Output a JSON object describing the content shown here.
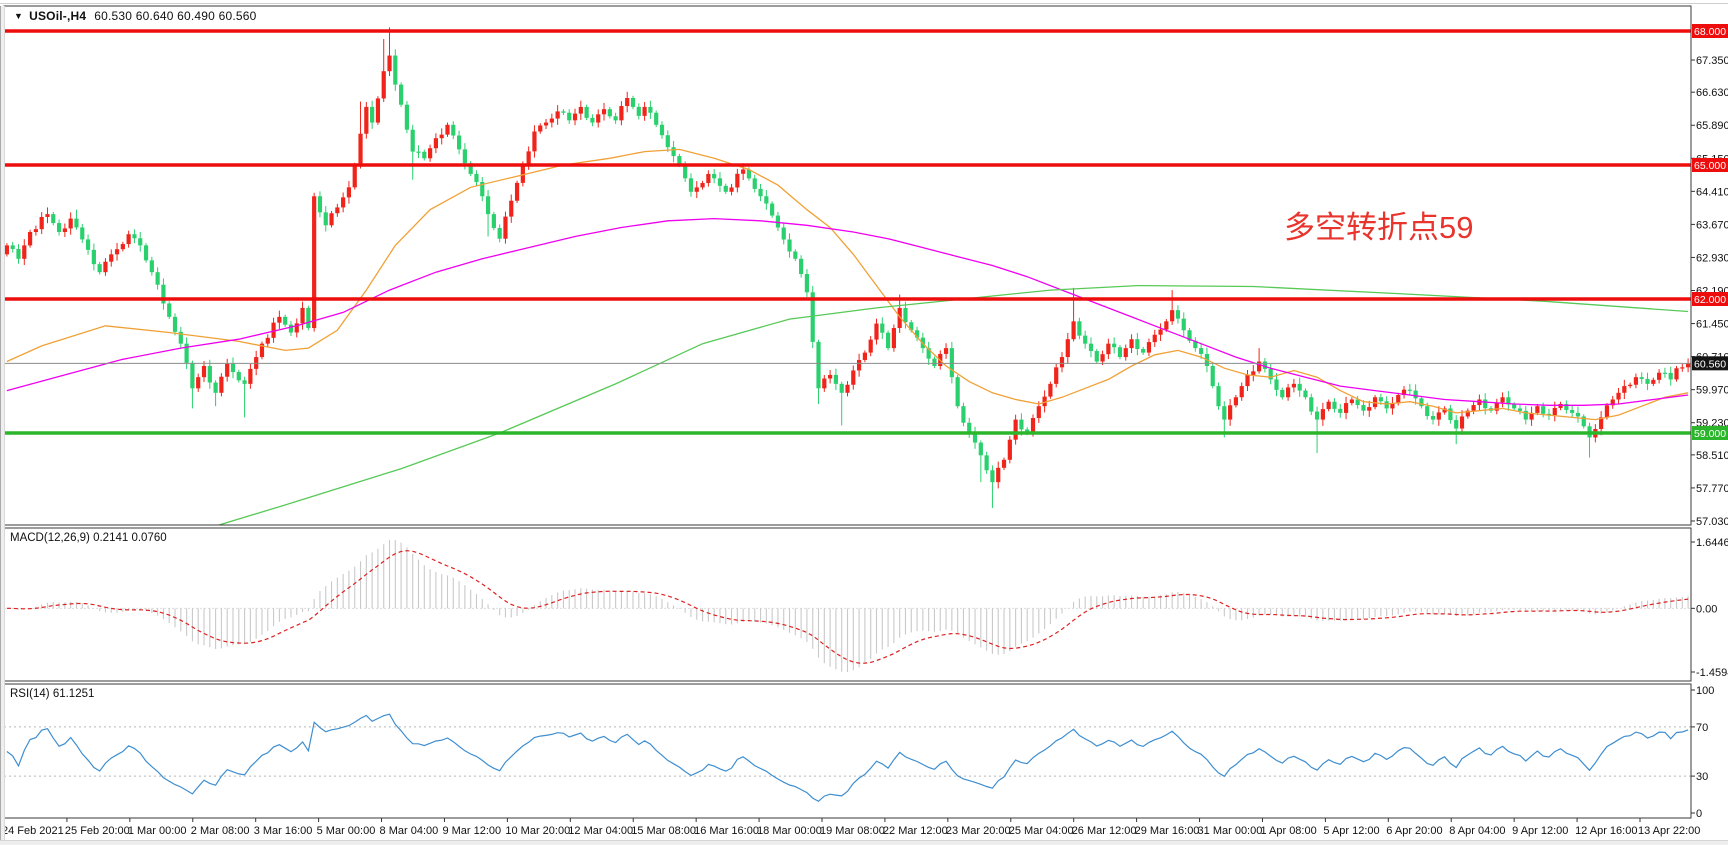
{
  "header": {
    "dropdown_icon": "▼",
    "symbol_period": "USOil-,H4",
    "ohlc": "60.530 60.640 60.490 60.560"
  },
  "annotation": {
    "text": "多空转折点59",
    "color": "#e8342c"
  },
  "colors": {
    "up_candle": "#f0241a",
    "down_candle": "#2bd06e",
    "resistance_line": "#ee0d0d",
    "support_line": "#2ab52a",
    "price_line": "#8c8c8c",
    "price_badge_bg": "#141414",
    "ma_fast": "#f0a136",
    "ma_medium": "#f000f0",
    "ma_slow": "#57c957",
    "macd_histogram": "#c9c9c9",
    "macd_signal": "#dd2222",
    "rsi_line": "#3e8ed0",
    "rsi_level_dash": "#b8b8b8",
    "panel_border": "#3a3a3a",
    "axis_text": "#111111"
  },
  "price_axis": {
    "ticks": [
      "67.350",
      "66.630",
      "65.890",
      "65.150",
      "64.410",
      "63.670",
      "62.930",
      "62.190",
      "61.450",
      "60.710",
      "59.970",
      "59.230",
      "58.510",
      "57.770",
      "57.030"
    ]
  },
  "time_axis": {
    "labels": [
      "24 Feb 2021",
      "25 Feb 20:00",
      "1 Mar 00:00",
      "2 Mar 08:00",
      "3 Mar 16:00",
      "5 Mar 00:00",
      "8 Mar 04:00",
      "9 Mar 12:00",
      "10 Mar 20:00",
      "12 Mar 04:00",
      "15 Mar 08:00",
      "16 Mar 16:00",
      "18 Mar 00:00",
      "19 Mar 08:00",
      "22 Mar 12:00",
      "23 Mar 20:00",
      "25 Mar 04:00",
      "26 Mar 12:00",
      "29 Mar 16:00",
      "31 Mar 00:00",
      "1 Apr 08:00",
      "5 Apr 12:00",
      "6 Apr 20:00",
      "8 Apr 04:00",
      "9 Apr 12:00",
      "12 Apr 16:00",
      "13 Apr 22:00"
    ]
  },
  "levels": [
    {
      "label": "68.000",
      "value": 68.0,
      "type": "resistance"
    },
    {
      "label": "65.000",
      "value": 65.0,
      "type": "resistance"
    },
    {
      "label": "62.000",
      "value": 62.0,
      "type": "resistance"
    },
    {
      "label": "59.000",
      "value": 59.0,
      "type": "support"
    }
  ],
  "current_price": {
    "label": "60.560",
    "value": 60.56
  },
  "chart_data": {
    "type": "candlestick",
    "symbol": "USOil-",
    "timeframe": "H4",
    "bars": 291,
    "ylim": [
      57.03,
      68.0
    ],
    "price_scale_note": "red candles = up, green candles = down (Chinese convention)",
    "close_waypoints": [
      [
        0,
        63.2
      ],
      [
        2,
        62.9
      ],
      [
        4,
        63.5
      ],
      [
        7,
        63.9
      ],
      [
        9,
        63.5
      ],
      [
        11,
        63.8
      ],
      [
        14,
        63.1
      ],
      [
        16,
        62.6
      ],
      [
        18,
        63.0
      ],
      [
        21,
        63.45
      ],
      [
        23,
        63.2
      ],
      [
        25,
        62.6
      ],
      [
        27,
        61.9
      ],
      [
        30,
        61.0
      ],
      [
        32,
        60.0
      ],
      [
        34,
        60.5
      ],
      [
        36,
        59.9
      ],
      [
        38,
        60.55
      ],
      [
        41,
        60.1
      ],
      [
        44,
        61.0
      ],
      [
        47,
        61.6
      ],
      [
        49,
        61.25
      ],
      [
        51,
        61.8
      ],
      [
        52,
        61.35
      ],
      [
        53,
        64.3
      ],
      [
        55,
        63.65
      ],
      [
        57,
        64.05
      ],
      [
        59,
        64.5
      ],
      [
        60,
        65.0
      ],
      [
        61,
        65.7
      ],
      [
        62,
        66.3
      ],
      [
        63,
        65.95
      ],
      [
        65,
        67.1
      ],
      [
        66,
        67.45
      ],
      [
        67,
        66.8
      ],
      [
        68,
        66.35
      ],
      [
        70,
        65.3
      ],
      [
        72,
        65.15
      ],
      [
        74,
        65.6
      ],
      [
        76,
        65.9
      ],
      [
        78,
        65.35
      ],
      [
        80,
        64.8
      ],
      [
        82,
        64.3
      ],
      [
        83,
        63.9
      ],
      [
        85,
        63.35
      ],
      [
        87,
        64.2
      ],
      [
        89,
        65.0
      ],
      [
        91,
        65.75
      ],
      [
        93,
        65.95
      ],
      [
        95,
        66.2
      ],
      [
        97,
        66.0
      ],
      [
        99,
        66.3
      ],
      [
        101,
        65.95
      ],
      [
        103,
        66.25
      ],
      [
        105,
        66.0
      ],
      [
        107,
        66.5
      ],
      [
        109,
        66.1
      ],
      [
        110,
        66.3
      ],
      [
        112,
        65.9
      ],
      [
        115,
        65.2
      ],
      [
        118,
        64.4
      ],
      [
        121,
        64.8
      ],
      [
        124,
        64.4
      ],
      [
        127,
        64.9
      ],
      [
        130,
        64.3
      ],
      [
        133,
        63.6
      ],
      [
        136,
        62.9
      ],
      [
        138,
        62.15
      ],
      [
        140,
        60.0
      ],
      [
        142,
        60.3
      ],
      [
        144,
        59.9
      ],
      [
        146,
        60.4
      ],
      [
        148,
        60.8
      ],
      [
        150,
        61.45
      ],
      [
        152,
        60.9
      ],
      [
        154,
        61.8
      ],
      [
        156,
        61.3
      ],
      [
        158,
        60.9
      ],
      [
        160,
        60.5
      ],
      [
        162,
        60.9
      ],
      [
        164,
        59.6
      ],
      [
        166,
        59.0
      ],
      [
        168,
        58.5
      ],
      [
        170,
        57.9
      ],
      [
        172,
        58.4
      ],
      [
        174,
        59.3
      ],
      [
        176,
        59.0
      ],
      [
        178,
        59.6
      ],
      [
        180,
        60.1
      ],
      [
        182,
        60.7
      ],
      [
        184,
        61.5
      ],
      [
        186,
        61.0
      ],
      [
        188,
        60.6
      ],
      [
        190,
        61.0
      ],
      [
        192,
        60.7
      ],
      [
        194,
        61.1
      ],
      [
        196,
        60.8
      ],
      [
        198,
        61.2
      ],
      [
        200,
        61.5
      ],
      [
        201,
        61.75
      ],
      [
        203,
        61.3
      ],
      [
        205,
        60.9
      ],
      [
        207,
        60.5
      ],
      [
        209,
        59.6
      ],
      [
        210,
        59.3
      ],
      [
        212,
        59.8
      ],
      [
        214,
        60.3
      ],
      [
        216,
        60.6
      ],
      [
        218,
        60.2
      ],
      [
        220,
        59.8
      ],
      [
        222,
        60.1
      ],
      [
        224,
        59.8
      ],
      [
        226,
        59.3
      ],
      [
        228,
        59.7
      ],
      [
        230,
        59.45
      ],
      [
        232,
        59.75
      ],
      [
        234,
        59.5
      ],
      [
        236,
        59.8
      ],
      [
        238,
        59.55
      ],
      [
        240,
        59.85
      ],
      [
        242,
        59.95
      ],
      [
        244,
        59.6
      ],
      [
        246,
        59.3
      ],
      [
        248,
        59.55
      ],
      [
        250,
        59.1
      ],
      [
        252,
        59.5
      ],
      [
        254,
        59.75
      ],
      [
        256,
        59.5
      ],
      [
        258,
        59.8
      ],
      [
        260,
        59.55
      ],
      [
        262,
        59.3
      ],
      [
        264,
        59.6
      ],
      [
        266,
        59.4
      ],
      [
        268,
        59.65
      ],
      [
        270,
        59.45
      ],
      [
        272,
        59.15
      ],
      [
        273,
        58.9
      ],
      [
        275,
        59.35
      ],
      [
        277,
        59.75
      ],
      [
        279,
        60.05
      ],
      [
        281,
        60.25
      ],
      [
        283,
        60.1
      ],
      [
        285,
        60.35
      ],
      [
        287,
        60.2
      ],
      [
        288,
        60.45
      ],
      [
        290,
        60.56
      ]
    ],
    "wick_overrides": [
      [
        7,
        "h",
        64.05
      ],
      [
        12,
        "h",
        64.0
      ],
      [
        32,
        "l",
        59.55
      ],
      [
        36,
        "l",
        59.6
      ],
      [
        41,
        "l",
        59.35
      ],
      [
        61,
        "h",
        66.42
      ],
      [
        65,
        "h",
        67.82
      ],
      [
        66,
        "h",
        68.08
      ],
      [
        70,
        "l",
        64.67
      ],
      [
        83,
        "l",
        63.4
      ],
      [
        107,
        "h",
        66.63
      ],
      [
        140,
        "l",
        59.65
      ],
      [
        144,
        "l",
        59.17
      ],
      [
        154,
        "h",
        62.1
      ],
      [
        168,
        "l",
        57.9
      ],
      [
        170,
        "l",
        57.32
      ],
      [
        184,
        "h",
        62.25
      ],
      [
        201,
        "h",
        62.2
      ],
      [
        210,
        "l",
        58.9
      ],
      [
        216,
        "h",
        60.9
      ],
      [
        226,
        "l",
        58.55
      ],
      [
        242,
        "h",
        60.1
      ],
      [
        250,
        "l",
        58.75
      ],
      [
        273,
        "l",
        58.45
      ]
    ],
    "ma_lines": [
      {
        "name": "ma-fast-orange",
        "points": [
          [
            0,
            60.6
          ],
          [
            6,
            60.95
          ],
          [
            17,
            61.4
          ],
          [
            28,
            61.25
          ],
          [
            40,
            61.05
          ],
          [
            48,
            60.85
          ],
          [
            52,
            60.9
          ],
          [
            57,
            61.3
          ],
          [
            62,
            62.2
          ],
          [
            67,
            63.2
          ],
          [
            73,
            64.0
          ],
          [
            80,
            64.5
          ],
          [
            88,
            64.75
          ],
          [
            96,
            65.0
          ],
          [
            104,
            65.15
          ],
          [
            110,
            65.3
          ],
          [
            116,
            65.35
          ],
          [
            122,
            65.15
          ],
          [
            128,
            64.9
          ],
          [
            133,
            64.55
          ],
          [
            138,
            64.0
          ],
          [
            142,
            63.6
          ],
          [
            146,
            63.0
          ],
          [
            150,
            62.3
          ],
          [
            154,
            61.6
          ],
          [
            158,
            61.0
          ],
          [
            162,
            60.5
          ],
          [
            166,
            60.15
          ],
          [
            170,
            59.9
          ],
          [
            174,
            59.75
          ],
          [
            178,
            59.65
          ],
          [
            182,
            59.8
          ],
          [
            186,
            60.0
          ],
          [
            190,
            60.2
          ],
          [
            194,
            60.5
          ],
          [
            198,
            60.75
          ],
          [
            202,
            60.85
          ],
          [
            206,
            60.7
          ],
          [
            210,
            60.45
          ],
          [
            214,
            60.3
          ],
          [
            218,
            60.25
          ],
          [
            222,
            60.4
          ],
          [
            226,
            60.25
          ],
          [
            230,
            59.95
          ],
          [
            234,
            59.7
          ],
          [
            238,
            59.65
          ],
          [
            242,
            59.7
          ],
          [
            246,
            59.6
          ],
          [
            250,
            59.45
          ],
          [
            254,
            59.5
          ],
          [
            258,
            59.55
          ],
          [
            262,
            59.45
          ],
          [
            266,
            59.4
          ],
          [
            270,
            59.35
          ],
          [
            274,
            59.3
          ],
          [
            278,
            59.4
          ],
          [
            282,
            59.6
          ],
          [
            286,
            59.8
          ],
          [
            290,
            59.9
          ]
        ]
      },
      {
        "name": "ma-medium-magenta",
        "points": [
          [
            0,
            59.95
          ],
          [
            10,
            60.3
          ],
          [
            20,
            60.65
          ],
          [
            30,
            60.9
          ],
          [
            40,
            61.1
          ],
          [
            50,
            61.4
          ],
          [
            58,
            61.7
          ],
          [
            66,
            62.2
          ],
          [
            74,
            62.6
          ],
          [
            82,
            62.9
          ],
          [
            90,
            63.15
          ],
          [
            98,
            63.4
          ],
          [
            106,
            63.6
          ],
          [
            114,
            63.75
          ],
          [
            122,
            63.8
          ],
          [
            130,
            63.75
          ],
          [
            138,
            63.65
          ],
          [
            146,
            63.5
          ],
          [
            152,
            63.35
          ],
          [
            158,
            63.15
          ],
          [
            164,
            62.95
          ],
          [
            170,
            62.75
          ],
          [
            176,
            62.5
          ],
          [
            182,
            62.2
          ],
          [
            188,
            61.9
          ],
          [
            194,
            61.6
          ],
          [
            200,
            61.3
          ],
          [
            206,
            61.0
          ],
          [
            212,
            60.7
          ],
          [
            218,
            60.45
          ],
          [
            224,
            60.25
          ],
          [
            230,
            60.05
          ],
          [
            236,
            59.95
          ],
          [
            242,
            59.85
          ],
          [
            248,
            59.75
          ],
          [
            254,
            59.7
          ],
          [
            260,
            59.65
          ],
          [
            266,
            59.62
          ],
          [
            272,
            59.62
          ],
          [
            278,
            59.65
          ],
          [
            284,
            59.75
          ],
          [
            290,
            59.85
          ]
        ]
      },
      {
        "name": "ma-slow-green",
        "points": [
          [
            33,
            56.8
          ],
          [
            47,
            57.35
          ],
          [
            68,
            58.2
          ],
          [
            85,
            59.0
          ],
          [
            105,
            60.1
          ],
          [
            120,
            61.0
          ],
          [
            135,
            61.55
          ],
          [
            150,
            61.8
          ],
          [
            165,
            62.0
          ],
          [
            180,
            62.2
          ],
          [
            195,
            62.3
          ],
          [
            215,
            62.28
          ],
          [
            240,
            62.12
          ],
          [
            265,
            61.95
          ],
          [
            290,
            61.72
          ]
        ]
      }
    ]
  },
  "macd": {
    "label": "MACD(12,26,9) 0.2141 0.0760",
    "fast_period": 12,
    "slow_period": 26,
    "signal_period": 9,
    "value_main": "0.2141",
    "value_signal": "0.0760",
    "axis_max": "1.6446",
    "axis_zero": "0.00",
    "axis_min": "-1.4594"
  },
  "rsi": {
    "label": "RSI(14) 61.1251",
    "period": 14,
    "value": "61.1251",
    "axis_levels": [
      {
        "label": "100",
        "value": 100
      },
      {
        "label": "70",
        "value": 70
      },
      {
        "label": "30",
        "value": 30
      },
      {
        "label": "0",
        "value": 0
      }
    ]
  }
}
